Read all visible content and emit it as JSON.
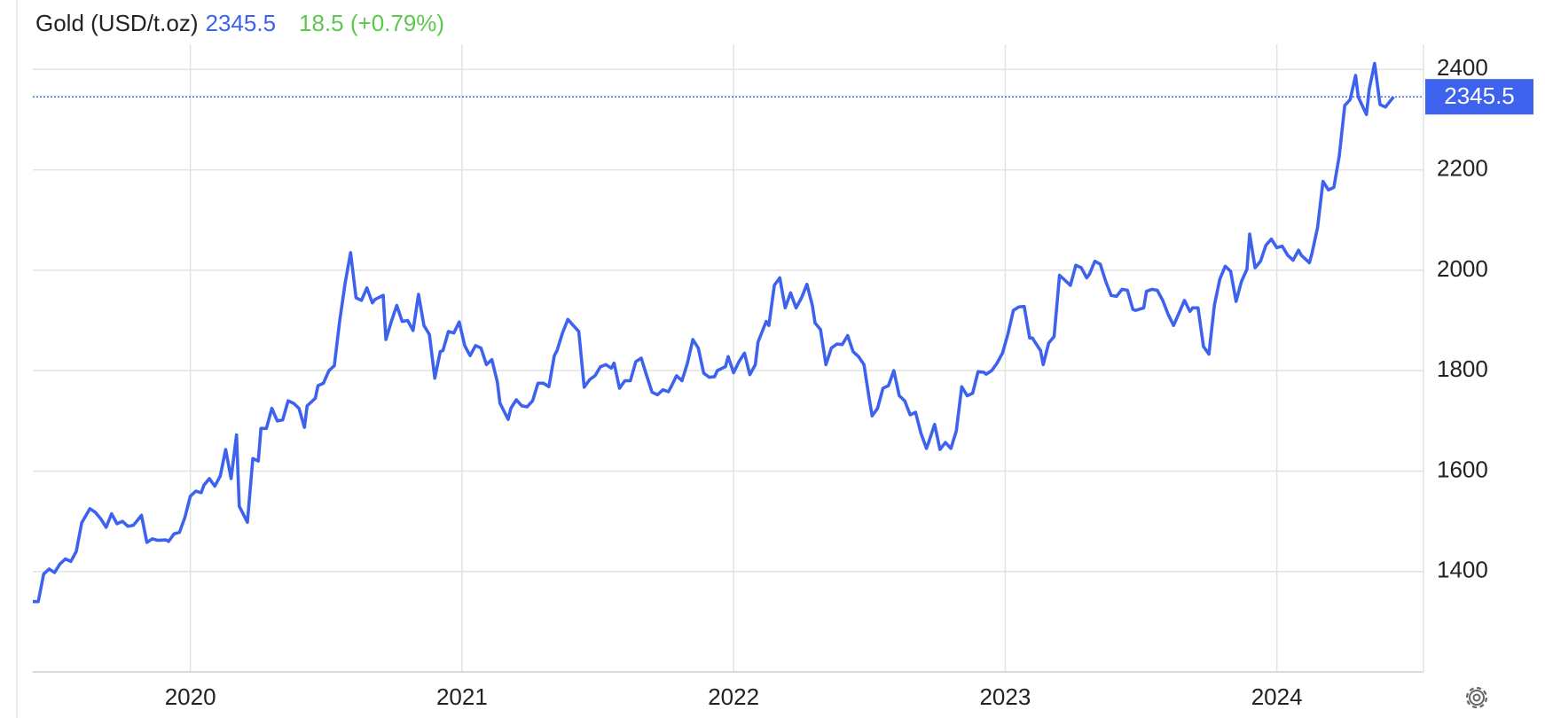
{
  "chart_data": {
    "type": "line",
    "title": "Gold (USD/t.oz)",
    "last_price": 2345.5,
    "change": "18.5 (+0.79%)",
    "xlim": [
      2019.42,
      2024.54
    ],
    "xticks": [
      2020,
      2021,
      2022,
      2023,
      2024
    ],
    "ylim": [
      1200,
      2450
    ],
    "yticks": [
      1400,
      1600,
      1800,
      2000,
      2200,
      2400
    ],
    "grid": true,
    "x": [
      2019.42,
      2019.44,
      2019.46,
      2019.48,
      2019.5,
      2019.52,
      2019.54,
      2019.56,
      2019.58,
      2019.6,
      2019.63,
      2019.65,
      2019.67,
      2019.69,
      2019.71,
      2019.73,
      2019.75,
      2019.77,
      2019.79,
      2019.81,
      2019.82,
      2019.84,
      2019.86,
      2019.88,
      2019.91,
      2019.92,
      2019.94,
      2019.96,
      2019.98,
      2020.0,
      2020.02,
      2020.04,
      2020.05,
      2020.07,
      2020.09,
      2020.11,
      2020.13,
      2020.15,
      2020.17,
      2020.18,
      2020.21,
      2020.23,
      2020.25,
      2020.26,
      2020.28,
      2020.3,
      2020.32,
      2020.34,
      2020.36,
      2020.38,
      2020.4,
      2020.42,
      2020.43,
      2020.46,
      2020.47,
      2020.49,
      2020.51,
      2020.53,
      2020.55,
      2020.57,
      2020.59,
      2020.61,
      2020.63,
      2020.65,
      2020.67,
      2020.68,
      2020.71,
      2020.72,
      2020.74,
      2020.76,
      2020.78,
      2020.8,
      2020.82,
      2020.84,
      2020.86,
      2020.88,
      2020.9,
      2020.92,
      2020.93,
      2020.95,
      2020.97,
      2020.99,
      2021.01,
      2021.03,
      2021.05,
      2021.07,
      2021.09,
      2021.11,
      2021.13,
      2021.14,
      2021.17,
      2021.18,
      2021.2,
      2021.22,
      2021.24,
      2021.26,
      2021.28,
      2021.3,
      2021.32,
      2021.34,
      2021.35,
      2021.37,
      2021.39,
      2021.41,
      2021.43,
      2021.45,
      2021.47,
      2021.49,
      2021.51,
      2021.53,
      2021.55,
      2021.56,
      2021.58,
      2021.6,
      2021.62,
      2021.64,
      2021.66,
      2021.68,
      2021.7,
      2021.72,
      2021.74,
      2021.76,
      2021.77,
      2021.79,
      2021.81,
      2021.83,
      2021.85,
      2021.87,
      2021.89,
      2021.91,
      2021.93,
      2021.94,
      2021.97,
      2021.98,
      2022.0,
      2022.02,
      2022.04,
      2022.06,
      2022.08,
      2022.09,
      2022.12,
      2022.13,
      2022.15,
      2022.17,
      2022.19,
      2022.21,
      2022.23,
      2022.25,
      2022.27,
      2022.29,
      2022.3,
      2022.32,
      2022.34,
      2022.36,
      2022.38,
      2022.4,
      2022.42,
      2022.44,
      2022.46,
      2022.48,
      2022.5,
      2022.51,
      2022.53,
      2022.55,
      2022.57,
      2022.59,
      2022.61,
      2022.63,
      2022.65,
      2022.67,
      2022.69,
      2022.71,
      2022.72,
      2022.74,
      2022.76,
      2022.78,
      2022.8,
      2022.82,
      2022.84,
      2022.86,
      2022.88,
      2022.9,
      2022.92,
      2022.93,
      2022.95,
      2022.97,
      2022.99,
      2023.01,
      2023.03,
      2023.05,
      2023.07,
      2023.09,
      2023.1,
      2023.13,
      2023.14,
      2023.16,
      2023.18,
      2023.2,
      2023.22,
      2023.24,
      2023.26,
      2023.28,
      2023.3,
      2023.31,
      2023.33,
      2023.35,
      2023.37,
      2023.39,
      2023.41,
      2023.43,
      2023.45,
      2023.47,
      2023.48,
      2023.51,
      2023.52,
      2023.54,
      2023.56,
      2023.58,
      2023.6,
      2023.62,
      2023.64,
      2023.66,
      2023.68,
      2023.69,
      2023.71,
      2023.73,
      2023.75,
      2023.77,
      2023.79,
      2023.81,
      2023.83,
      2023.85,
      2023.87,
      2023.89,
      2023.9,
      2023.92,
      2023.94,
      2023.96,
      2023.98,
      2024.0,
      2024.02,
      2024.04,
      2024.06,
      2024.08,
      2024.09,
      2024.12,
      2024.13,
      2024.15,
      2024.17,
      2024.19,
      2024.21,
      2024.23,
      2024.25,
      2024.27,
      2024.29,
      2024.3,
      2024.33,
      2024.34,
      2024.36,
      2024.38,
      2024.4,
      2024.43
    ],
    "series": [
      {
        "name": "Gold (USD/t.oz)",
        "color": "#3d63ee",
        "values": [
          1340,
          1340,
          1395,
          1405,
          1398,
          1415,
          1425,
          1420,
          1440,
          1497,
          1525,
          1518,
          1505,
          1488,
          1515,
          1495,
          1500,
          1490,
          1492,
          1505,
          1512,
          1458,
          1465,
          1462,
          1463,
          1460,
          1475,
          1478,
          1508,
          1550,
          1560,
          1557,
          1572,
          1585,
          1570,
          1590,
          1643,
          1585,
          1672,
          1530,
          1498,
          1625,
          1620,
          1685,
          1685,
          1725,
          1700,
          1702,
          1740,
          1735,
          1725,
          1687,
          1730,
          1745,
          1770,
          1775,
          1800,
          1810,
          1900,
          1975,
          2035,
          1945,
          1940,
          1965,
          1935,
          1942,
          1950,
          1862,
          1898,
          1930,
          1898,
          1900,
          1880,
          1952,
          1890,
          1872,
          1785,
          1838,
          1840,
          1878,
          1875,
          1897,
          1850,
          1830,
          1850,
          1845,
          1812,
          1822,
          1778,
          1735,
          1703,
          1725,
          1742,
          1730,
          1728,
          1740,
          1775,
          1775,
          1768,
          1830,
          1840,
          1875,
          1902,
          1890,
          1878,
          1767,
          1782,
          1790,
          1808,
          1812,
          1805,
          1815,
          1765,
          1780,
          1780,
          1818,
          1825,
          1790,
          1757,
          1752,
          1762,
          1758,
          1768,
          1790,
          1780,
          1815,
          1862,
          1845,
          1795,
          1787,
          1788,
          1800,
          1808,
          1828,
          1796,
          1818,
          1835,
          1792,
          1812,
          1857,
          1898,
          1890,
          1970,
          1985,
          1925,
          1955,
          1925,
          1945,
          1972,
          1930,
          1895,
          1882,
          1812,
          1845,
          1853,
          1852,
          1870,
          1838,
          1828,
          1812,
          1742,
          1710,
          1725,
          1765,
          1770,
          1800,
          1750,
          1740,
          1712,
          1717,
          1675,
          1645,
          1660,
          1693,
          1643,
          1657,
          1645,
          1680,
          1768,
          1750,
          1755,
          1798,
          1797,
          1793,
          1800,
          1815,
          1835,
          1873,
          1920,
          1927,
          1928,
          1865,
          1865,
          1840,
          1812,
          1855,
          1868,
          1990,
          1980,
          1970,
          2010,
          2005,
          1985,
          1992,
          2018,
          2012,
          1978,
          1950,
          1948,
          1962,
          1960,
          1922,
          1920,
          1925,
          1958,
          1962,
          1960,
          1940,
          1912,
          1890,
          1915,
          1940,
          1918,
          1925,
          1925,
          1848,
          1833,
          1930,
          1982,
          2008,
          1998,
          1938,
          1978,
          2002,
          2072,
          2005,
          2018,
          2050,
          2062,
          2045,
          2048,
          2030,
          2020,
          2040,
          2030,
          2015,
          2035,
          2085,
          2177,
          2160,
          2165,
          2228,
          2328,
          2340,
          2388,
          2345,
          2310,
          2360,
          2412,
          2330,
          2325,
          2345.5
        ]
      }
    ]
  }
}
